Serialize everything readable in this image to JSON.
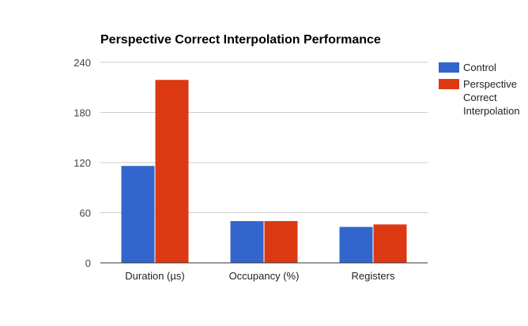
{
  "chart_data": {
    "type": "bar",
    "title": "Perspective Correct Interpolation Performance",
    "categories": [
      "Duration (µs)",
      "Occupancy (%)",
      "Registers"
    ],
    "series": [
      {
        "name": "Control",
        "color": "#3366cc",
        "values": [
          116,
          50,
          43
        ]
      },
      {
        "name": "Perspective Correct Interpolation",
        "color": "#dc3912",
        "values": [
          219,
          50,
          46
        ]
      }
    ],
    "ylim": [
      0,
      240
    ],
    "yticks": [
      0,
      60,
      120,
      180,
      240
    ],
    "grid": true,
    "legend_position": "right"
  }
}
